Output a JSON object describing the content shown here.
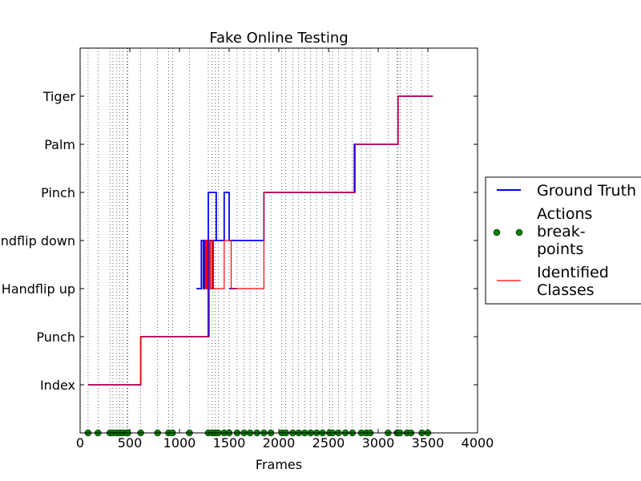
{
  "chart_data": {
    "type": "line",
    "title": "Fake Online Testing",
    "xlabel": "Frames",
    "ylabel": "",
    "xlim": [
      0,
      4000
    ],
    "ylim": [
      -1,
      7
    ],
    "x_ticks": [
      0,
      500,
      1000,
      1500,
      2000,
      2500,
      3000,
      3500,
      4000
    ],
    "y_ticks": [
      0,
      1,
      2,
      3,
      4,
      5,
      6
    ],
    "y_tick_labels": [
      "Index",
      "Punch",
      "Handflip up",
      "Handflip down",
      "Pinch",
      "Palm",
      "Tiger"
    ],
    "legend": {
      "placement": "outside-right",
      "entries": [
        {
          "lines": [
            "Ground Truth"
          ],
          "style": "line",
          "color": "#0000ff"
        },
        {
          "lines": [
            "Actions",
            "break-",
            " points"
          ],
          "style": "marker",
          "color": "#008000"
        },
        {
          "lines": [
            "Identified",
            "Classes"
          ],
          "style": "line",
          "color": "#ff0000"
        }
      ]
    },
    "breakpoints": [
      80,
      180,
      300,
      330,
      370,
      400,
      430,
      470,
      480,
      610,
      780,
      890,
      930,
      1100,
      1290,
      1330,
      1360,
      1390,
      1450,
      1500,
      1580,
      1650,
      1710,
      1780,
      1850,
      1920,
      2030,
      2070,
      2140,
      2200,
      2260,
      2320,
      2380,
      2440,
      2510,
      2540,
      2600,
      2670,
      2740,
      2830,
      2880,
      2920,
      3100,
      3190,
      3200,
      3220,
      3290,
      3330,
      3440,
      3500
    ],
    "series": [
      {
        "name": "Ground Truth",
        "color": "#0000ff",
        "x": [
          80,
          610,
          610,
          1290,
          1290,
          1370,
          1370,
          1450,
          1450,
          1500,
          1500,
          1850,
          1850,
          2760,
          2760,
          3200,
          3200,
          3550
        ],
        "y": [
          0,
          0,
          1,
          1,
          4,
          4,
          3,
          3,
          4,
          4,
          3,
          3,
          4,
          4,
          5,
          5,
          6,
          6
        ],
        "extra_segments": [
          {
            "x": [
              1170,
              1220,
              1220,
              1240,
              1240,
              1250,
              1250,
              1270,
              1270,
              1280,
              1280,
              1300,
              1300,
              1310,
              1310,
              1330,
              1330,
              1340,
              1340,
              1370
            ],
            "y": [
              2,
              2,
              3,
              3,
              2,
              2,
              3,
              3,
              2,
              2,
              3,
              3,
              2,
              2,
              3,
              3,
              2,
              2,
              3,
              3
            ]
          },
          {
            "x": [
              1500,
              1580
            ],
            "y": [
              2,
              2
            ]
          }
        ]
      },
      {
        "name": "Identified Classes",
        "color": "#ff0000",
        "x": [
          80,
          610,
          610,
          1300,
          1300,
          1310,
          1310,
          1330,
          1330,
          1340,
          1340,
          1450,
          1450,
          1520,
          1520,
          1850,
          1850,
          2770,
          2770,
          3200,
          3200,
          3550
        ],
        "y": [
          0,
          0,
          1,
          1,
          3,
          3,
          2,
          2,
          3,
          3,
          2,
          2,
          3,
          3,
          2,
          2,
          4,
          4,
          5,
          5,
          6,
          6
        ],
        "extra_segments": [
          {
            "x": [
              1250,
              1260,
              1260,
              1270,
              1270,
              1280,
              1280,
              1290
            ],
            "y": [
              2,
              2,
              3,
              3,
              2,
              2,
              3,
              3
            ]
          }
        ]
      }
    ]
  }
}
